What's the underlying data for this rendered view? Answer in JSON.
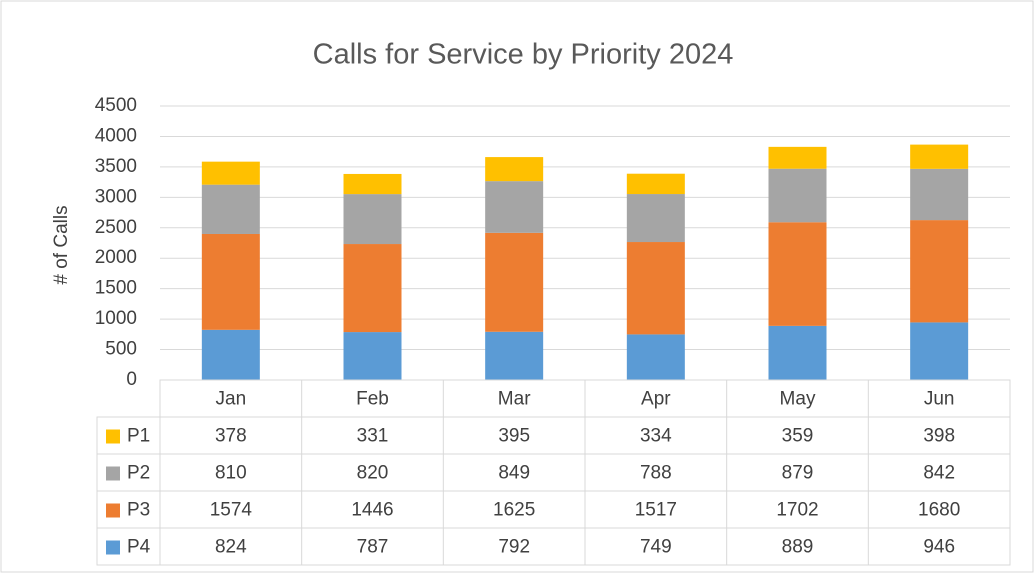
{
  "chart_data": {
    "type": "stacked_bar",
    "title": "Calls for Service by Priority 2024",
    "y_label": "# of Calls",
    "categories": [
      "Jan",
      "Feb",
      "Mar",
      "Apr",
      "May",
      "Jun"
    ],
    "series": [
      {
        "name": "P1",
        "color": "#ffc000",
        "values": [
          378,
          331,
          395,
          334,
          359,
          398
        ]
      },
      {
        "name": "P2",
        "color": "#a5a5a5",
        "values": [
          810,
          820,
          849,
          788,
          879,
          842
        ]
      },
      {
        "name": "P3",
        "color": "#ed7d31",
        "values": [
          1574,
          1446,
          1625,
          1517,
          1702,
          1680
        ]
      },
      {
        "name": "P4",
        "color": "#5b9bd5",
        "values": [
          824,
          787,
          792,
          749,
          889,
          946
        ]
      }
    ],
    "ylim": [
      0,
      4500
    ],
    "yticks": [
      0,
      500,
      1000,
      1500,
      2000,
      2500,
      3000,
      3500,
      4000,
      4500
    ],
    "grid": true
  }
}
